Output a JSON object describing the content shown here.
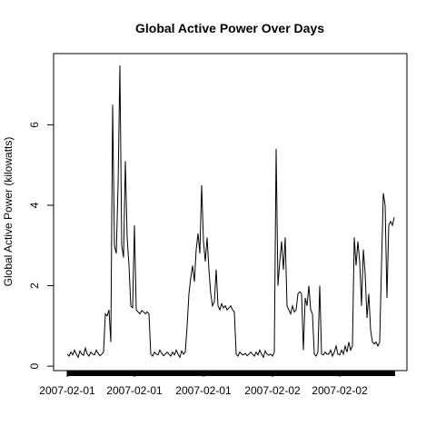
{
  "chart_data": {
    "type": "line",
    "title": "Global Active Power Over Days",
    "ylabel": "Global Active Power (kilowatts)",
    "color": "#000000",
    "values": [
      0.3,
      0.25,
      0.35,
      0.28,
      0.4,
      0.3,
      0.22,
      0.38,
      0.3,
      0.27,
      0.45,
      0.3,
      0.25,
      0.35,
      0.3,
      0.28,
      0.4,
      0.32,
      0.26,
      0.3,
      0.35,
      1.3,
      1.25,
      1.4,
      0.6,
      6.5,
      3.0,
      2.8,
      4.5,
      7.48,
      3.0,
      2.7,
      5.1,
      3.2,
      2.5,
      1.5,
      1.45,
      3.5,
      1.4,
      1.35,
      1.3,
      1.38,
      1.35,
      1.3,
      1.35,
      1.3,
      0.3,
      0.25,
      0.35,
      0.3,
      0.28,
      0.4,
      0.32,
      0.26,
      0.3,
      0.35,
      0.3,
      0.25,
      0.35,
      0.28,
      0.4,
      0.3,
      0.22,
      0.38,
      0.3,
      0.35,
      1.0,
      1.8,
      2.2,
      2.5,
      2.1,
      2.9,
      3.3,
      2.8,
      4.5,
      3.1,
      2.6,
      3.2,
      2.4,
      1.8,
      1.5,
      1.6,
      2.4,
      1.5,
      1.4,
      1.55,
      1.45,
      1.5,
      1.4,
      1.45,
      1.5,
      1.4,
      1.35,
      0.3,
      0.25,
      0.35,
      0.3,
      0.28,
      0.32,
      0.26,
      0.3,
      0.35,
      0.3,
      0.25,
      0.35,
      0.28,
      0.4,
      0.3,
      0.22,
      0.38,
      0.3,
      0.27,
      0.3,
      0.25,
      0.35,
      5.4,
      2.0,
      2.6,
      3.1,
      2.4,
      3.2,
      1.5,
      1.4,
      1.3,
      1.5,
      1.35,
      1.4,
      1.8,
      1.85,
      1.8,
      0.4,
      1.7,
      1.5,
      2.0,
      1.4,
      1.3,
      0.3,
      0.25,
      0.35,
      2.0,
      0.3,
      0.28,
      0.35,
      0.3,
      0.3,
      0.4,
      0.25,
      0.35,
      0.5,
      0.3,
      0.28,
      0.4,
      0.3,
      0.5,
      0.35,
      0.6,
      0.4,
      0.5,
      3.2,
      2.5,
      3.1,
      2.6,
      1.5,
      2.9,
      2.3,
      1.2,
      1.8,
      0.9,
      0.6,
      0.55,
      0.6,
      0.5,
      0.6,
      2.5,
      4.3,
      4.0,
      1.7,
      3.5,
      3.6,
      3.5,
      3.7
    ],
    "xlim": [
      -7.5,
      187
    ],
    "xticks": [
      {
        "value": 0,
        "label": "2007-02-01"
      },
      {
        "value": 37,
        "label": "2007-02-01"
      },
      {
        "value": 75,
        "label": "2007-02-01"
      },
      {
        "value": 113,
        "label": "2007-02-02"
      },
      {
        "value": 150,
        "label": "2007-02-02"
      }
    ],
    "ylim": [
      -0.11,
      7.77
    ],
    "yticks": [
      0,
      2,
      4,
      6
    ]
  }
}
